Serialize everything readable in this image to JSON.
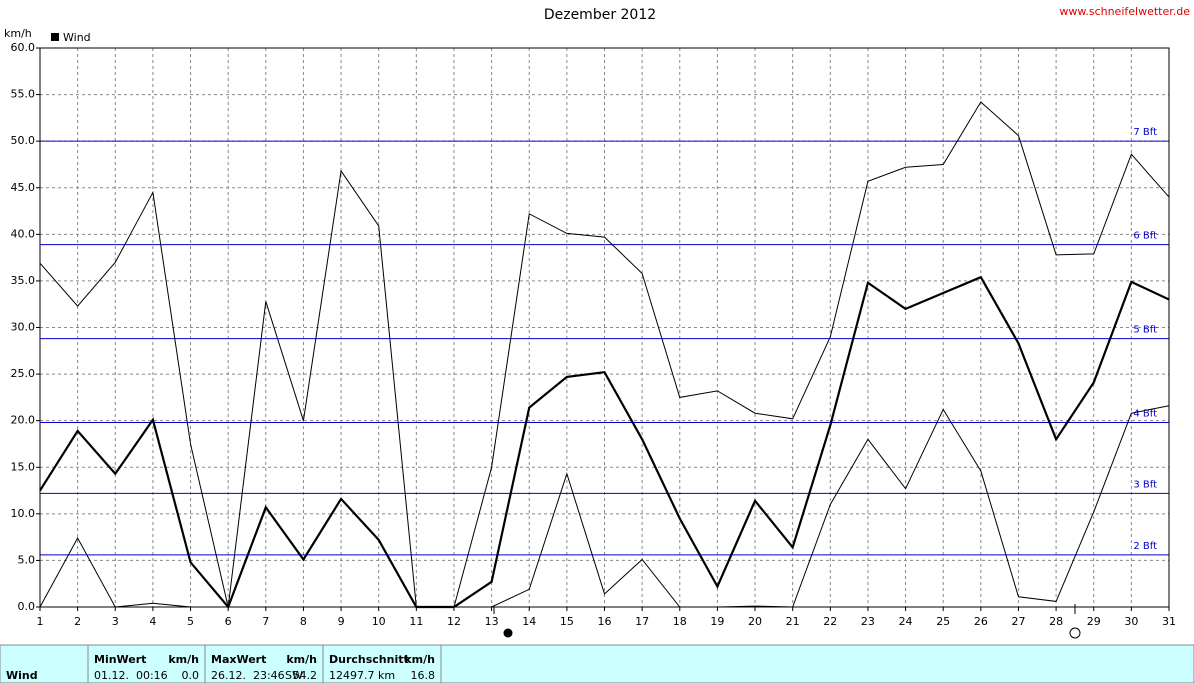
{
  "chart_data": {
    "type": "line",
    "title": "Dezember 2012",
    "source": "www.schneifelwetter.de",
    "y_label": "km/h",
    "legend_label": "Wind",
    "legend_color": "#000000",
    "x": [
      1,
      2,
      3,
      4,
      5,
      6,
      7,
      8,
      9,
      10,
      11,
      12,
      13,
      14,
      15,
      16,
      17,
      18,
      19,
      20,
      21,
      22,
      23,
      24,
      25,
      26,
      27,
      28,
      29,
      30,
      31
    ],
    "series": [
      {
        "color": "#000000",
        "line_width": 1,
        "values": [
          36.9,
          32.3,
          37.0,
          44.5,
          17.5,
          0,
          32.8,
          20.0,
          46.8,
          40.9,
          0,
          0,
          15.0,
          42.2,
          40.1,
          39.7,
          35.8,
          22.5,
          23.2,
          20.8,
          20.2,
          29.0,
          45.7,
          47.2,
          47.5,
          54.2,
          50.6,
          37.8,
          37.9,
          48.6,
          44.0
        ]
      },
      {
        "color": "#000000",
        "line_width": 2.2,
        "values": [
          12.5,
          18.9,
          14.3,
          20.1,
          4.8,
          0,
          10.7,
          5.1,
          11.6,
          7.2,
          0,
          0,
          2.7,
          21.4,
          24.7,
          25.2,
          18.0,
          9.5,
          2.2,
          11.4,
          6.4,
          19.5,
          34.8,
          32.0,
          33.7,
          35.4,
          28.3,
          18.0,
          24.1,
          34.9,
          33.0
        ]
      },
      {
        "color": "#000000",
        "line_width": 1,
        "values": [
          0,
          7.4,
          0,
          0.4,
          0,
          0,
          0,
          0,
          0,
          0,
          0,
          0,
          0,
          1.9,
          14.3,
          1.4,
          5.1,
          0,
          0,
          0.1,
          0,
          11.0,
          18.0,
          12.7,
          21.2,
          14.6,
          1.1,
          0.6,
          10.2,
          20.8,
          21.6
        ]
      }
    ],
    "reference_lines": [
      {
        "value": 5.6,
        "label": "2 Bft"
      },
      {
        "value": 12.2,
        "label": "3 Bft"
      },
      {
        "value": 19.8,
        "label": "4 Bft"
      },
      {
        "value": 28.8,
        "label": "5 Bft"
      },
      {
        "value": 38.9,
        "label": "6 Bft"
      },
      {
        "value": 50.0,
        "label": "7 Bft"
      }
    ],
    "reference_color": "#0000cc",
    "xlim": [
      1,
      31
    ],
    "xticks": [
      1,
      2,
      3,
      4,
      5,
      6,
      7,
      8,
      9,
      10,
      11,
      12,
      13,
      14,
      15,
      16,
      17,
      18,
      19,
      20,
      21,
      22,
      23,
      24,
      25,
      26,
      27,
      28,
      29,
      30,
      31
    ],
    "ylim": [
      0,
      60
    ],
    "yticks": [
      {
        "value": 0,
        "label": "0.0"
      },
      {
        "value": 5,
        "label": "5.0"
      },
      {
        "value": 10,
        "label": "10.0"
      },
      {
        "value": 15,
        "label": "15.0"
      },
      {
        "value": 20,
        "label": "20.0"
      },
      {
        "value": 25,
        "label": "25.0"
      },
      {
        "value": 30,
        "label": "30.0"
      },
      {
        "value": 35,
        "label": "35.0"
      },
      {
        "value": 40,
        "label": "40.0"
      },
      {
        "value": 45,
        "label": "45.0"
      },
      {
        "value": 50,
        "label": "50.0"
      },
      {
        "value": 55,
        "label": "55.0"
      },
      {
        "value": 60,
        "label": "60.0"
      }
    ],
    "grid": true
  },
  "stats_table": {
    "row_label": "Wind",
    "columns": [
      {
        "header": "MinWert",
        "unit": "km/h",
        "cells": [
          "01.12.  00:16",
          "0.0"
        ]
      },
      {
        "header": "MaxWert",
        "unit": "km/h",
        "cells": [
          "26.12.  23:46",
          "SW",
          "54.2"
        ]
      },
      {
        "header": "Durchschnitt",
        "unit": "km/h",
        "cells": [
          "12497.7 km",
          "16.8"
        ]
      }
    ]
  }
}
